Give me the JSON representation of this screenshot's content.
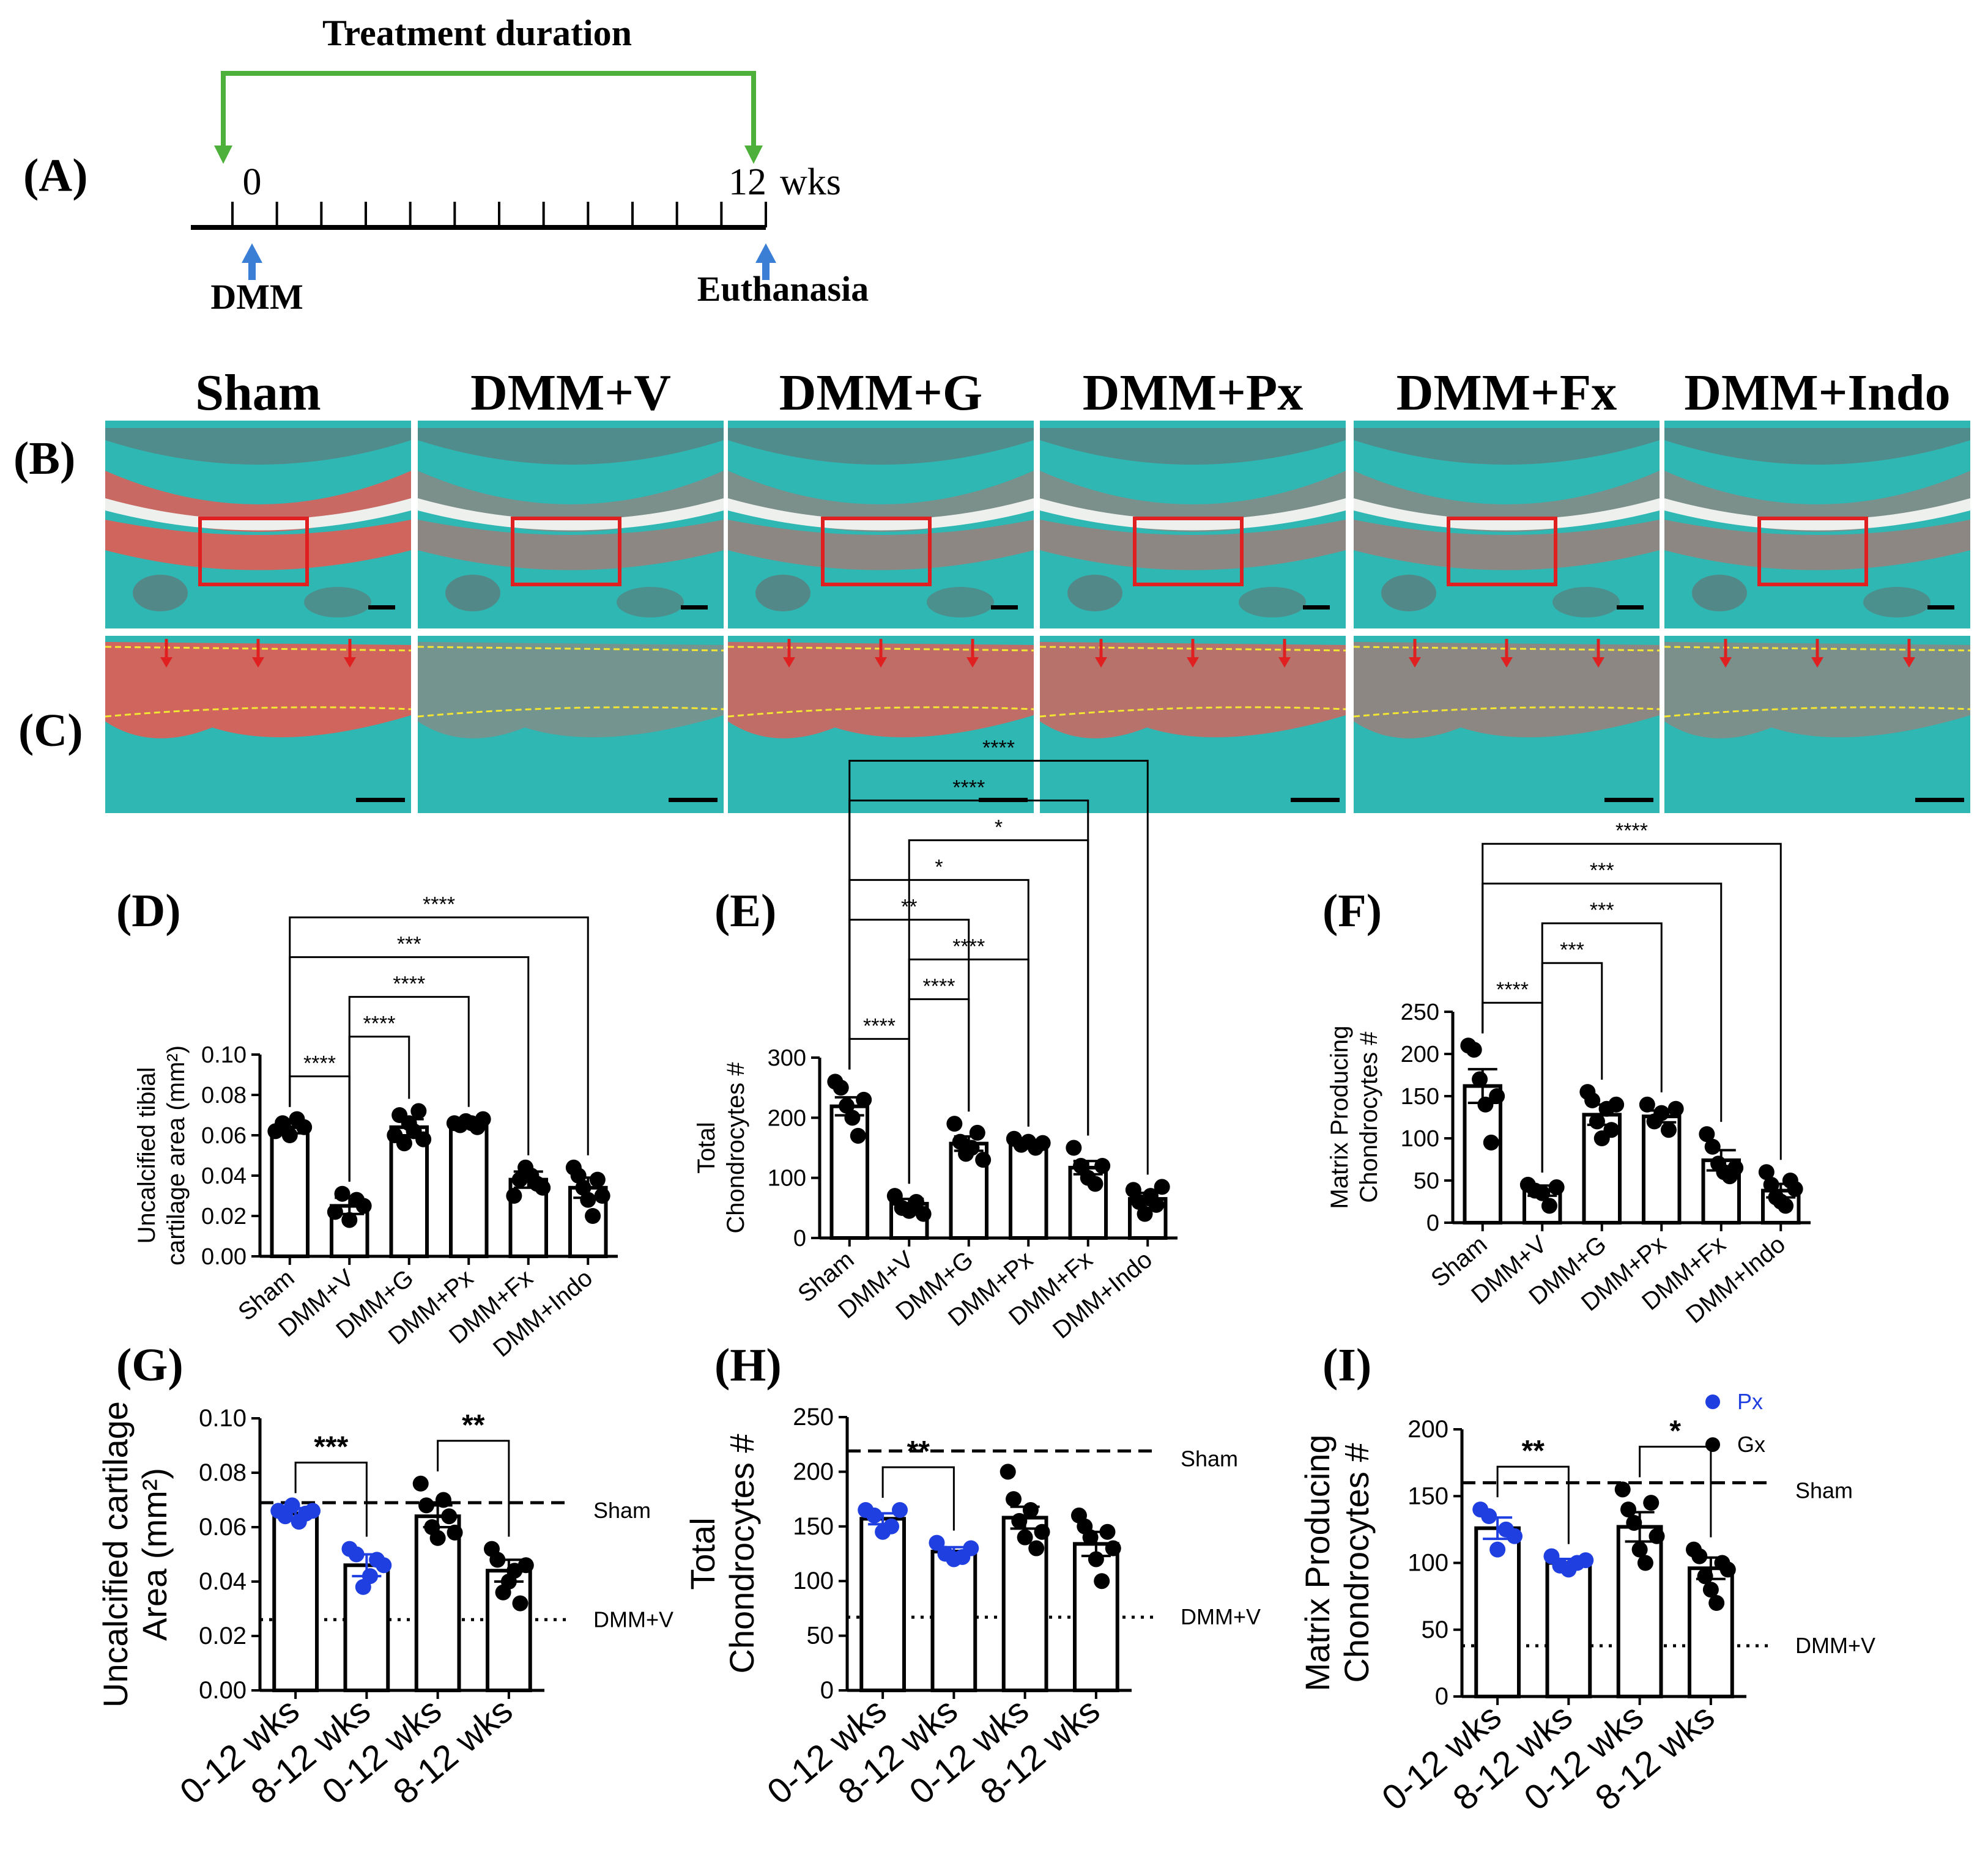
{
  "panelA": {
    "label": "(A)",
    "title": "Treatment duration",
    "start": "0",
    "end": "12",
    "unit": "wks",
    "left_event": "DMM",
    "right_event": "Euthanasia",
    "weeks": 12
  },
  "histology": {
    "labelB": "(B)",
    "labelC": "(C)",
    "groups": [
      "Sham",
      "DMM+V",
      "DMM+G",
      "DMM+Px",
      "DMM+Fx",
      "DMM+Indo"
    ],
    "stain_colors": {
      "bone": "#2fb7b3",
      "cartilage": "#d9605a",
      "gap": "#eef0ee",
      "marrow": "#6a6a6a",
      "box": "#e02020",
      "tide": "#f2e533"
    }
  },
  "colors": {
    "px": "#1f3fe0",
    "gx": "#000000"
  },
  "chart_data": [
    {
      "panel": "(D)",
      "type": "bar",
      "ylabel_lines": [
        "Uncalcified tibial",
        "cartilage area (mm²)"
      ],
      "categories": [
        "Sham",
        "DMM+V",
        "DMM+G",
        "DMM+Px",
        "DMM+Fx",
        "DMM+Indo"
      ],
      "values": [
        0.064,
        0.025,
        0.064,
        0.066,
        0.038,
        0.034
      ],
      "sem": [
        0.003,
        0.004,
        0.004,
        0.001,
        0.004,
        0.005
      ],
      "points": [
        [
          0.062,
          0.066,
          0.06,
          0.068,
          0.064
        ],
        [
          0.022,
          0.031,
          0.018,
          0.028,
          0.025
        ],
        [
          0.06,
          0.07,
          0.056,
          0.066,
          0.062,
          0.072,
          0.058
        ],
        [
          0.066,
          0.065,
          0.067,
          0.066,
          0.064,
          0.068
        ],
        [
          0.03,
          0.038,
          0.044,
          0.04,
          0.036,
          0.034
        ],
        [
          0.044,
          0.04,
          0.034,
          0.028,
          0.02,
          0.038,
          0.03
        ]
      ],
      "ylim": [
        0,
        0.1
      ],
      "yticks": [
        "0.00",
        "0.02",
        "0.04",
        "0.06",
        "0.08",
        "0.10"
      ],
      "sig": [
        {
          "from": 0,
          "to": 1,
          "label": "****"
        },
        {
          "from": 1,
          "to": 2,
          "label": "****"
        },
        {
          "from": 1,
          "to": 3,
          "label": "****"
        },
        {
          "from": 0,
          "to": 4,
          "label": "***"
        },
        {
          "from": 0,
          "to": 5,
          "label": "****"
        }
      ]
    },
    {
      "panel": "(E)",
      "type": "bar",
      "ylabel_lines": [
        "Total",
        "Chondrocytes #"
      ],
      "categories": [
        "Sham",
        "DMM+V",
        "DMM+G",
        "DMM+Px",
        "DMM+Fx",
        "DMM+Indo"
      ],
      "values": [
        219,
        57,
        157,
        158,
        117,
        65
      ],
      "sem": [
        15,
        8,
        12,
        5,
        11,
        10
      ],
      "points": [
        [
          260,
          250,
          220,
          200,
          170,
          230
        ],
        [
          70,
          50,
          45,
          60,
          40
        ],
        [
          190,
          160,
          140,
          150,
          175,
          130
        ],
        [
          165,
          155,
          160,
          150,
          158
        ],
        [
          150,
          120,
          100,
          90,
          120
        ],
        [
          80,
          60,
          40,
          70,
          55,
          85
        ]
      ],
      "ylim": [
        0,
        300
      ],
      "yticks": [
        "0",
        "100",
        "200",
        "300"
      ],
      "sig": [
        {
          "from": 0,
          "to": 1,
          "label": "****"
        },
        {
          "from": 1,
          "to": 3,
          "label": "****"
        },
        {
          "from": 1,
          "to": 2,
          "label": "****"
        },
        {
          "from": 0,
          "to": 2,
          "label": "**"
        },
        {
          "from": 0,
          "to": 3,
          "label": "*"
        },
        {
          "from": 1,
          "to": 4,
          "label": "*"
        },
        {
          "from": 0,
          "to": 4,
          "label": "****"
        },
        {
          "from": 0,
          "to": 5,
          "label": "****"
        }
      ]
    },
    {
      "panel": "(F)",
      "type": "bar",
      "ylabel_lines": [
        "Matrix  Producing",
        "Chondrocytes #"
      ],
      "categories": [
        "Sham",
        "DMM+V",
        "DMM+G",
        "DMM+Px",
        "DMM+Fx",
        "DMM+Indo"
      ],
      "values": [
        162,
        38,
        128,
        126,
        74,
        38
      ],
      "sem": [
        20,
        6,
        12,
        7,
        12,
        8
      ],
      "points": [
        [
          210,
          205,
          170,
          140,
          95,
          150
        ],
        [
          45,
          38,
          35,
          20,
          42
        ],
        [
          155,
          145,
          120,
          100,
          135,
          110,
          140
        ],
        [
          140,
          120,
          130,
          110,
          135
        ],
        [
          105,
          90,
          70,
          60,
          55,
          65
        ],
        [
          60,
          45,
          30,
          25,
          20,
          50,
          40
        ]
      ],
      "ylim": [
        0,
        250
      ],
      "yticks": [
        "0",
        "50",
        "100",
        "150",
        "200",
        "250"
      ],
      "sig": [
        {
          "from": 0,
          "to": 1,
          "label": "****"
        },
        {
          "from": 1,
          "to": 2,
          "label": "***"
        },
        {
          "from": 1,
          "to": 3,
          "label": "***"
        },
        {
          "from": 0,
          "to": 4,
          "label": "***"
        },
        {
          "from": 0,
          "to": 5,
          "label": "****"
        }
      ]
    },
    {
      "panel": "(G)",
      "type": "bar",
      "ylabel_lines": [
        "Uncalcified cartilage",
        "Area (mm²)"
      ],
      "categories": [
        "0-12 wks",
        "8-12 wks",
        "0-12 wks",
        "8-12 wks"
      ],
      "point_series": [
        "px",
        "px",
        "gx",
        "gx"
      ],
      "values": [
        0.065,
        0.046,
        0.064,
        0.044
      ],
      "sem": [
        0.002,
        0.004,
        0.004,
        0.004
      ],
      "points": [
        [
          0.066,
          0.064,
          0.068,
          0.062,
          0.065,
          0.066
        ],
        [
          0.052,
          0.05,
          0.038,
          0.042,
          0.048,
          0.046
        ],
        [
          0.076,
          0.068,
          0.06,
          0.056,
          0.07,
          0.064,
          0.058
        ],
        [
          0.052,
          0.048,
          0.036,
          0.04,
          0.044,
          0.032,
          0.046
        ]
      ],
      "ylim": [
        0,
        0.1
      ],
      "yticks": [
        "0.00",
        "0.02",
        "0.04",
        "0.06",
        "0.08",
        "0.10"
      ],
      "ref_lines": [
        {
          "label": "Sham",
          "value": 0.069,
          "style": "dashed"
        },
        {
          "label": "DMM+V",
          "value": 0.026,
          "style": "dotted"
        }
      ],
      "sig": [
        {
          "from": 0,
          "to": 1,
          "label": "***"
        },
        {
          "from": 2,
          "to": 3,
          "label": "**"
        }
      ]
    },
    {
      "panel": "(H)",
      "type": "bar",
      "ylabel_lines": [
        "Total",
        "Chondrocytes #"
      ],
      "categories": [
        "0-12 wks",
        "8-12 wks",
        "0-12 wks",
        "8-12 wks"
      ],
      "point_series": [
        "px",
        "px",
        "gx",
        "gx"
      ],
      "values": [
        157,
        127,
        158,
        134
      ],
      "sem": [
        5,
        4,
        10,
        11
      ],
      "points": [
        [
          165,
          160,
          145,
          150,
          165
        ],
        [
          135,
          125,
          120,
          122,
          130
        ],
        [
          200,
          175,
          155,
          140,
          165,
          130,
          145
        ],
        [
          160,
          150,
          140,
          120,
          100,
          145,
          130
        ]
      ],
      "ylim": [
        0,
        250
      ],
      "yticks": [
        "0",
        "50",
        "100",
        "150",
        "200",
        "250"
      ],
      "ref_lines": [
        {
          "label": "Sham",
          "value": 219,
          "style": "dashed"
        },
        {
          "label": "DMM+V",
          "value": 67,
          "style": "dotted"
        }
      ],
      "sig": [
        {
          "from": 0,
          "to": 1,
          "label": "**"
        }
      ]
    },
    {
      "panel": "(I)",
      "type": "bar",
      "ylabel_lines": [
        "Matrix Producing",
        "Chondrocytes #"
      ],
      "categories": [
        "0-12 wks",
        "8-12 wks",
        "0-12 wks",
        "8-12 wks"
      ],
      "point_series": [
        "px",
        "px",
        "gx",
        "gx"
      ],
      "values": [
        126,
        100,
        127,
        96
      ],
      "sem": [
        8,
        3,
        11,
        8
      ],
      "points": [
        [
          140,
          135,
          110,
          125,
          120
        ],
        [
          105,
          98,
          95,
          100,
          102
        ],
        [
          155,
          140,
          130,
          110,
          100,
          145,
          120
        ],
        [
          110,
          105,
          90,
          80,
          70,
          100,
          95
        ]
      ],
      "ylim": [
        0,
        200
      ],
      "yticks": [
        "0",
        "50",
        "100",
        "150",
        "200"
      ],
      "ref_lines": [
        {
          "label": "Sham",
          "value": 160,
          "style": "dashed"
        },
        {
          "label": "DMM+V",
          "value": 38,
          "style": "dotted"
        }
      ],
      "sig": [
        {
          "from": 0,
          "to": 1,
          "label": "**"
        },
        {
          "from": 2,
          "to": 3,
          "label": "*"
        }
      ],
      "legend": [
        {
          "label": "Px",
          "key": "px"
        },
        {
          "label": "Gx",
          "key": "gx"
        }
      ]
    }
  ]
}
